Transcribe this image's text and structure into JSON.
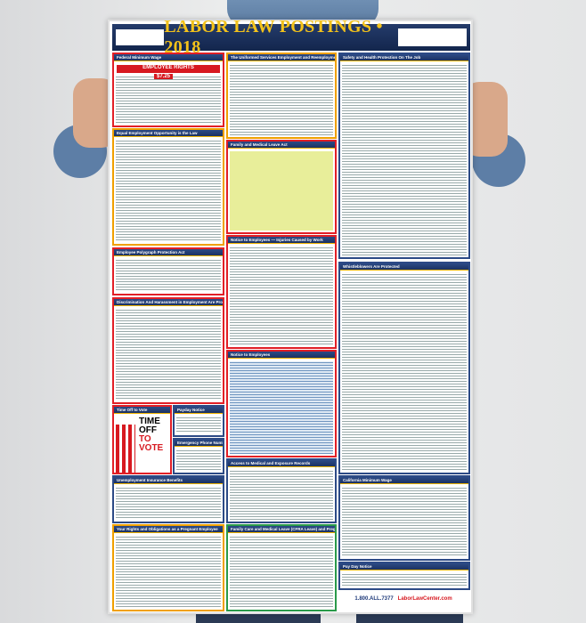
{
  "poster": {
    "title": "LABOR LAW POSTINGS • 2018",
    "phone": "1.800.ALL.7377",
    "brand": "LaborLawCenter.com"
  },
  "sections": {
    "fed_min_wage": "Federal Minimum Wage",
    "employee_rights": "EMPLOYEE RIGHTS",
    "fed_wage_value": "$7.25",
    "eeo": "Equal Employment Opportunity is the Law",
    "polygraph": "Employee Polygraph Protection Act",
    "discrimination": "Discrimination And Harassment in Employment Are Prohibited By Law",
    "time_off": "Time Off to Vote",
    "time_off_l1": "TIME OFF",
    "time_off_l2": "TO VOTE",
    "payday": "Payday Notice",
    "emergency": "Emergency Phone Numbers",
    "unemployment": "Unemployment Insurance Benefits",
    "pregnant": "Your Rights and Obligations as a Pregnant Employee",
    "userra": "The Uniformed Services Employment and Reemployment Rights Act",
    "fmla": "Family and Medical Leave Act",
    "injuries": "Notice to Employees — Injuries Caused by Work",
    "notice": "Notice to Employees",
    "records": "Access to Medical and Exposure Records",
    "cfra": "Family Care and Medical Leave (CFRA Leave) and Pregnancy Disability Leave",
    "osha": "Safety and Health Protection On The Job",
    "whistle": "Whistleblowers Are Protected",
    "ca_wage": "California Minimum Wage",
    "payday2": "Pay Day Notice"
  },
  "colors": {
    "frame": "#e21f26",
    "header": "#1b3263",
    "title": "#f3c21a"
  }
}
